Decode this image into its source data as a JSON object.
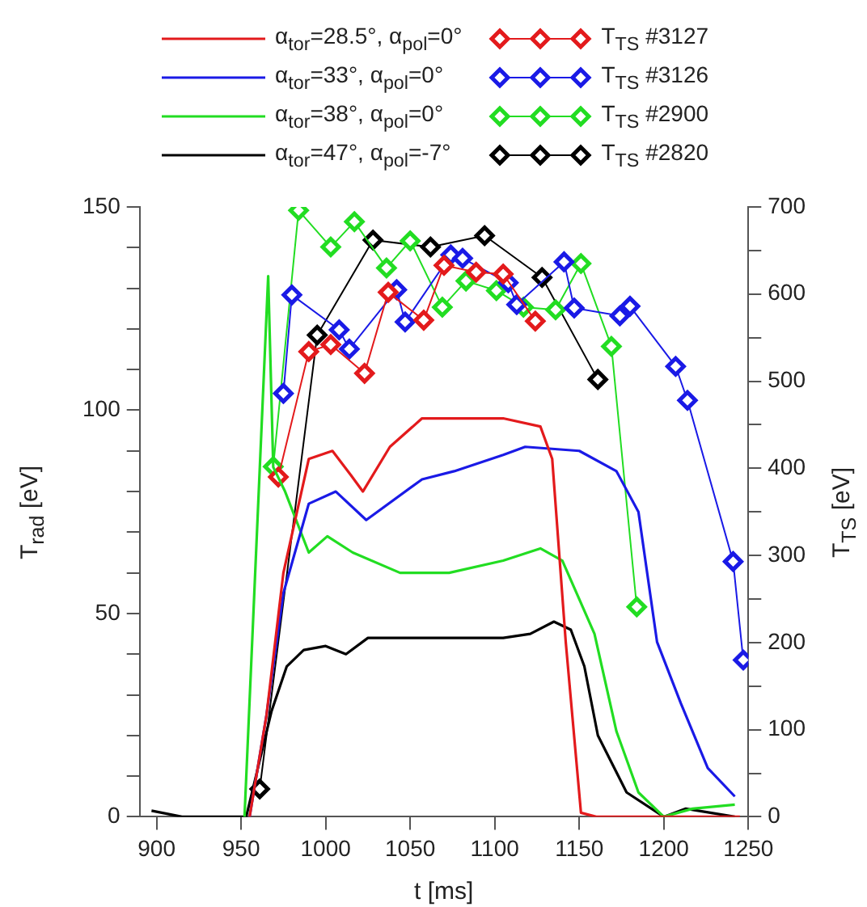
{
  "chart_data": {
    "type": "line",
    "xlabel": "t [ms]",
    "ylabel": "T$_{rad}$ [eV]",
    "y2label": "T$_{TS}$ [eV]",
    "xlim": [
      890,
      1250
    ],
    "xticks": [
      900,
      950,
      1000,
      1050,
      1100,
      1150,
      1200,
      1250
    ],
    "ylim": [
      0,
      150
    ],
    "yticks": [
      0,
      {
        "value": 10,
        "label": null
      },
      {
        "value": 20,
        "label": null
      },
      {
        "value": 30,
        "label": null
      },
      {
        "value": 40,
        "label": null
      },
      50,
      {
        "value": 60,
        "label": null
      },
      {
        "value": 70,
        "label": null
      },
      {
        "value": 80,
        "label": null
      },
      {
        "value": 90,
        "label": null
      },
      100,
      {
        "value": 110,
        "label": null
      },
      {
        "value": 120,
        "label": null
      },
      {
        "value": 130,
        "label": null
      },
      {
        "value": 140,
        "label": null
      },
      150
    ],
    "y2lim": [
      0,
      700
    ],
    "y2ticks": [
      0,
      {
        "value": 50,
        "label": null
      },
      100,
      {
        "value": 150,
        "label": null
      },
      200,
      {
        "value": 250,
        "label": null
      },
      300,
      {
        "value": 350,
        "label": null
      },
      400,
      {
        "value": 450,
        "label": null
      },
      500,
      {
        "value": 550,
        "label": null
      },
      600,
      {
        "value": 650,
        "label": null
      },
      700
    ],
    "grid": false,
    "legend": "top",
    "series": [
      {
        "name": "α$_{tor}$=28.5°,  α$_{pol}$=0°",
        "color": "#e31a1c",
        "type": "line",
        "marker": "none",
        "axis": "y",
        "x": [
          955,
          965,
          975,
          990,
          1004,
          1015,
          1022,
          1038,
          1057,
          1080,
          1105,
          1127,
          1134,
          1142,
          1151,
          1160,
          1200,
          1245
        ],
        "values": [
          0,
          25,
          60,
          88,
          90,
          84,
          80,
          91,
          98,
          98,
          98,
          96,
          88,
          43,
          1,
          0,
          0,
          0
        ]
      },
      {
        "name": "α$_{tor}$=33°,  α$_{pol}$=0°",
        "color": "#1a1ae6",
        "type": "line",
        "marker": "none",
        "axis": "y",
        "x": [
          955,
          965,
          975,
          990,
          1006,
          1024,
          1057,
          1076,
          1105,
          1118,
          1150,
          1172,
          1185,
          1196,
          1210,
          1226,
          1242
        ],
        "values": [
          0,
          25,
          55,
          77,
          80,
          73,
          83,
          85,
          89,
          91,
          90,
          85,
          75,
          43,
          28,
          12,
          5
        ]
      },
      {
        "name": "α$_{tor}$=38°,  α$_{pol}$=0°",
        "color": "#22dd22",
        "type": "line",
        "marker": "none",
        "axis": "y",
        "x": [
          952,
          966,
          969,
          976,
          990,
          1001,
          1016,
          1044,
          1073,
          1105,
          1127,
          1140,
          1159,
          1172,
          1185,
          1200,
          1217,
          1242
        ],
        "values": [
          0,
          133,
          86,
          80,
          65,
          69,
          65,
          60,
          60,
          63,
          66,
          63,
          45,
          21,
          6,
          0,
          2,
          3
        ]
      },
      {
        "name": "α$_{tor}$=47°,  α$_{pol}$=-7°",
        "color": "#000000",
        "type": "line",
        "marker": "none",
        "axis": "y",
        "x": [
          897,
          915,
          953,
          968,
          977,
          987,
          1000,
          1012,
          1025,
          1073,
          1105,
          1121,
          1135,
          1145,
          1153,
          1161,
          1178,
          1200,
          1213,
          1242
        ],
        "values": [
          1.5,
          0,
          0,
          26,
          37,
          41,
          42,
          40,
          44,
          44,
          44,
          45,
          48,
          46,
          37,
          20,
          6,
          0,
          2,
          0
        ]
      },
      {
        "name": "T$_{TS}$ #3127",
        "color": "#e31a1c",
        "type": "line",
        "marker": "diamond",
        "axis": "y2",
        "x": [
          972,
          990,
          1003,
          1023,
          1037,
          1058,
          1070,
          1089,
          1105,
          1124
        ],
        "values": [
          390,
          534,
          542,
          509,
          602,
          570,
          633,
          625,
          623,
          569
        ]
      },
      {
        "name": "T$_{TS}$ #3126",
        "color": "#1a1ae6",
        "type": "line",
        "marker": "diamond",
        "axis": "y2",
        "x": [
          975,
          980,
          1008,
          1014,
          1042,
          1047,
          1074,
          1081,
          1108,
          1113,
          1141,
          1147,
          1174,
          1180,
          1207,
          1214,
          1241,
          1247
        ],
        "values": [
          486,
          599,
          559,
          537,
          605,
          568,
          645,
          641,
          613,
          588,
          637,
          584,
          575,
          586,
          517,
          478,
          293,
          180
        ]
      },
      {
        "name": "T$_{TS}$ #2900",
        "color": "#22dd22",
        "type": "line",
        "marker": "diamond",
        "axis": "y2",
        "x": [
          969,
          984,
          1003,
          1017,
          1036,
          1050,
          1069,
          1083,
          1101,
          1117,
          1136,
          1151,
          1169,
          1184
        ],
        "values": [
          402,
          696,
          654,
          683,
          630,
          661,
          585,
          615,
          604,
          585,
          582,
          635,
          540,
          241
        ]
      },
      {
        "name": "T$_{TS}$ #2820",
        "color": "#000000",
        "type": "line",
        "marker": "diamond",
        "axis": "y2",
        "x": [
          961,
          995,
          1028,
          1062,
          1094,
          1128,
          1161
        ],
        "values": [
          32,
          553,
          662,
          654,
          667,
          619,
          502
        ]
      }
    ]
  }
}
